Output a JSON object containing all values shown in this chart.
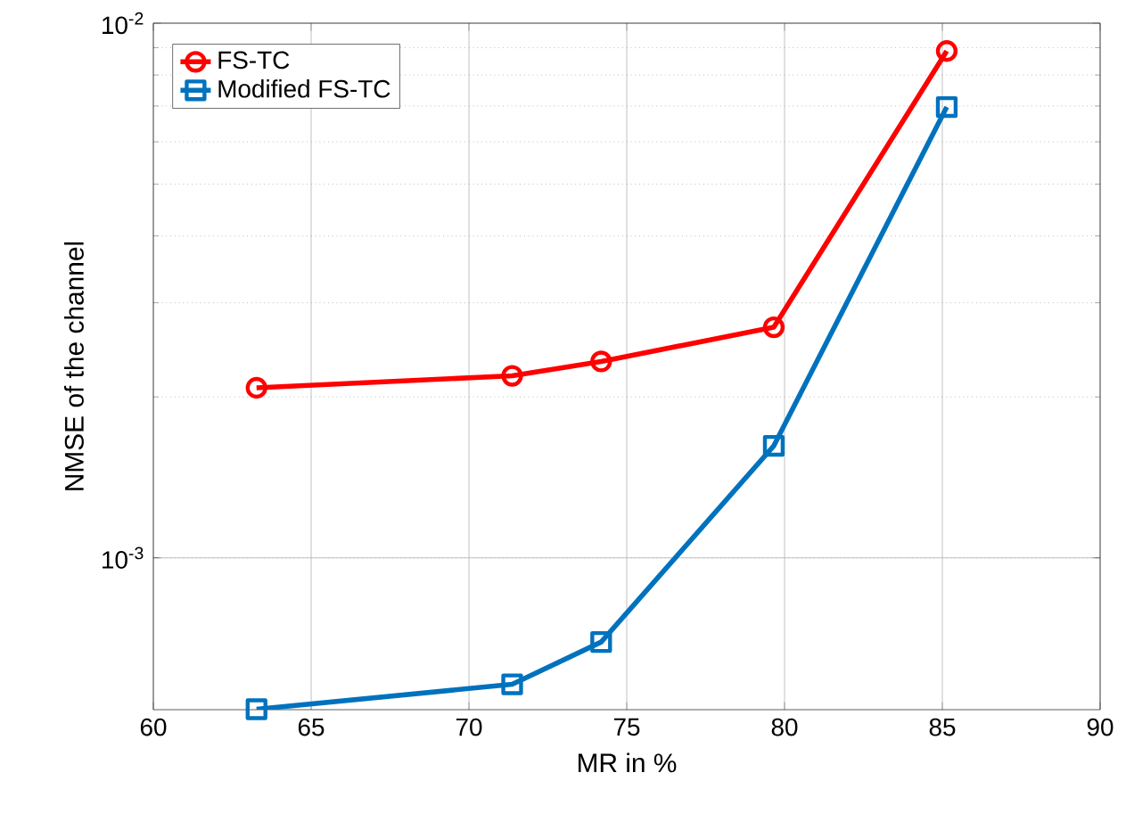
{
  "chart_data": {
    "type": "line",
    "xlabel": "MR in %",
    "ylabel": "NMSE of the channel",
    "log": "y",
    "grid": true,
    "legend": "top left",
    "line_style": "solid",
    "xlim": [
      60,
      90
    ],
    "xticks": [
      60,
      65,
      70,
      75,
      80,
      85,
      90
    ],
    "ylim": [
      0.00052,
      0.01
    ],
    "yticks": [
      {
        "value": 0.001,
        "label": "10$^{-3}$"
      },
      {
        "value": 0.01,
        "label": "10$^{-2}$"
      }
    ],
    "series": [
      {
        "name": "FS-TC",
        "color": "#ff0000",
        "marker": "circle",
        "x": [
          63.27,
          71.37,
          74.19,
          79.66,
          85.14
        ],
        "values": [
          0.00208,
          0.00219,
          0.00233,
          0.0027,
          0.00887
        ]
      },
      {
        "name": "Modified FS-TC",
        "color": "#0072bd",
        "marker": "square",
        "x": [
          63.27,
          71.37,
          74.19,
          79.66,
          85.14
        ],
        "values": [
          0.000521,
          0.00058,
          0.000696,
          0.00162,
          0.00697
        ]
      }
    ]
  }
}
